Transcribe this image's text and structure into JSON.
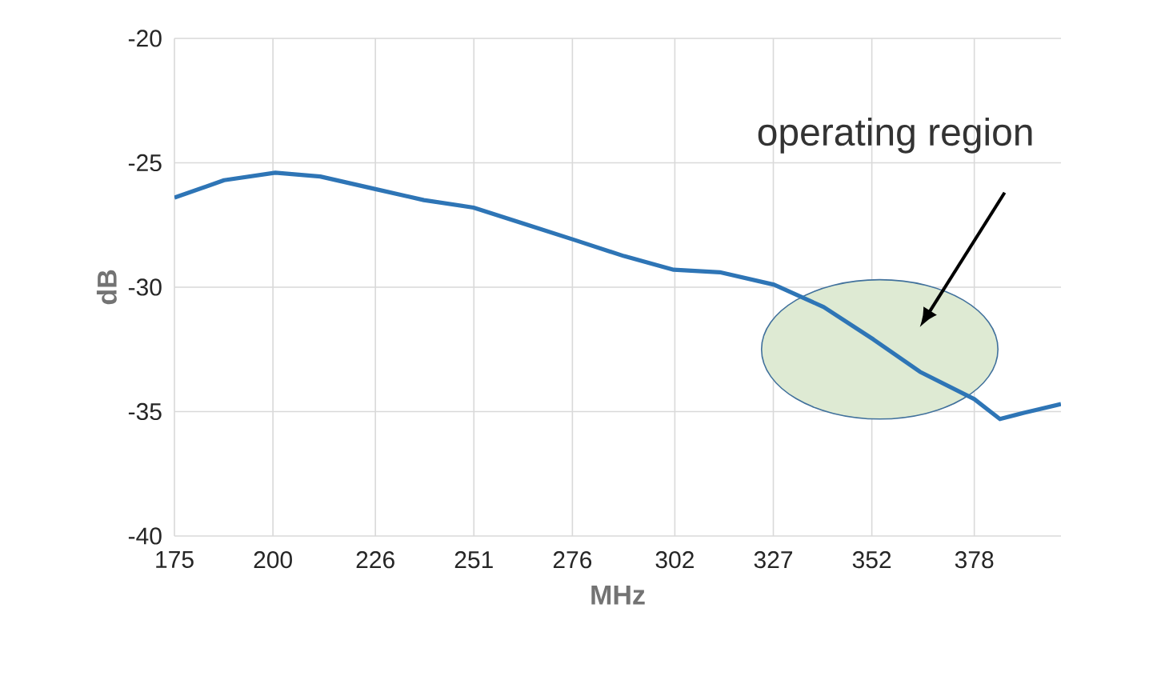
{
  "chart_data": {
    "type": "line",
    "xlabel": "MHz",
    "ylabel": "dB",
    "x": [
      175,
      187.6,
      200.6,
      212,
      225.8,
      238.3,
      250.9,
      264.7,
      276.5,
      289.1,
      301.7,
      313.4,
      327.2,
      339.8,
      352.4,
      364.2,
      378,
      384.5,
      390.6,
      400
    ],
    "series": [
      {
        "color": "#2e75b6",
        "values": [
          -26.4,
          -25.7,
          -25.4,
          -25.55,
          -26.05,
          -26.5,
          -26.8,
          -27.5,
          -28.1,
          -28.75,
          -29.3,
          -29.4,
          -29.9,
          -30.8,
          -32.1,
          -33.4,
          -34.5,
          -35.3,
          -35.05,
          -34.7
        ]
      }
    ],
    "xlim": [
      175,
      400
    ],
    "ylim": [
      -40,
      -20
    ],
    "xticks": [
      175,
      200,
      226,
      251,
      276,
      302,
      327,
      352,
      378
    ],
    "yticks": [
      -40,
      -35,
      -30,
      -25,
      -20
    ],
    "grid": true,
    "marker": "none",
    "line_style": "solid",
    "annotations": [
      "operating region"
    ]
  }
}
